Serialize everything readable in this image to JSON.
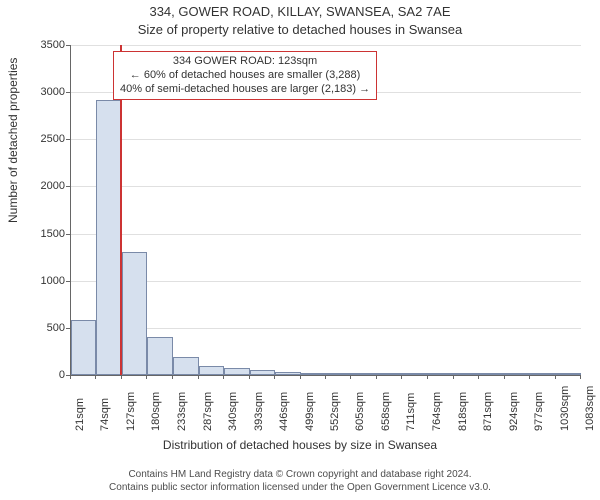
{
  "title_main": "334, GOWER ROAD, KILLAY, SWANSEA, SA2 7AE",
  "title_sub": "Size of property relative to detached houses in Swansea",
  "ylabel": "Number of detached properties",
  "xlabel": "Distribution of detached houses by size in Swansea",
  "chart": {
    "type": "histogram",
    "ylim": [
      0,
      3500
    ],
    "ytick_step": 500,
    "yticks": [
      0,
      500,
      1000,
      1500,
      2000,
      2500,
      3000,
      3500
    ],
    "x_start": 21,
    "x_step": 53,
    "bin_left_edges": [
      21,
      74,
      127,
      180,
      233,
      287,
      340,
      393,
      446,
      499,
      552,
      605,
      658,
      711,
      764,
      818,
      871,
      924,
      977,
      1030,
      1083
    ],
    "xtick_labels": [
      "21sqm",
      "74sqm",
      "127sqm",
      "180sqm",
      "233sqm",
      "287sqm",
      "340sqm",
      "393sqm",
      "446sqm",
      "499sqm",
      "552sqm",
      "605sqm",
      "658sqm",
      "711sqm",
      "764sqm",
      "818sqm",
      "871sqm",
      "924sqm",
      "977sqm",
      "1030sqm",
      "1083sqm"
    ],
    "counts": [
      580,
      2920,
      1300,
      400,
      190,
      100,
      70,
      50,
      35,
      25,
      18,
      14,
      10,
      8,
      6,
      5,
      4,
      3,
      2,
      2
    ],
    "bar_fill": "#d6e0ee",
    "bar_stroke": "#7a8aa8",
    "grid_color": "#e0e0e0",
    "axis_color": "#666666",
    "background_color": "#ffffff",
    "marker_value_sqm": 123,
    "marker_color": "#cc3333"
  },
  "annotation": {
    "line1": "334 GOWER ROAD: 123sqm",
    "line2": "← 60% of detached houses are smaller (3,288)",
    "line3": "40% of semi-detached houses are larger (2,183) →"
  },
  "footer": {
    "line1": "Contains HM Land Registry data © Crown copyright and database right 2024.",
    "line2": "Contains public sector information licensed under the Open Government Licence v3.0."
  },
  "fonts": {
    "title_size_pt": 13,
    "axis_label_size_pt": 12,
    "tick_size_pt": 11,
    "annot_size_pt": 11,
    "footer_size_pt": 10
  }
}
